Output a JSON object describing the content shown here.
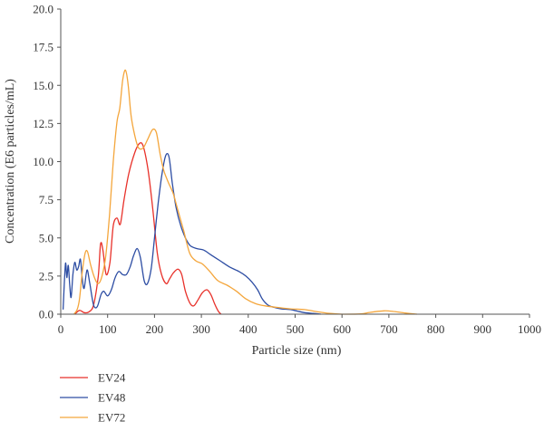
{
  "chart_data": {
    "type": "line",
    "xlabel": "Particle size (nm)",
    "ylabel": "Concentration (E6 particles/mL)",
    "xlim": [
      0,
      1000
    ],
    "ylim": [
      0,
      20
    ],
    "xticks": [
      "0",
      "100",
      "200",
      "300",
      "400",
      "500",
      "600",
      "700",
      "800",
      "900",
      "1000"
    ],
    "yticks": [
      "0.0",
      "2.5",
      "5.0",
      "7.5",
      "10.0",
      "12.5",
      "15.0",
      "17.5",
      "20.0"
    ],
    "grid": false,
    "legend_position": "bottom-left",
    "series": [
      {
        "name": "EV24",
        "color": "#e8312a",
        "points": [
          [
            30,
            0
          ],
          [
            40,
            0.25
          ],
          [
            50,
            0.1
          ],
          [
            60,
            0.15
          ],
          [
            70,
            0.6
          ],
          [
            80,
            2.5
          ],
          [
            85,
            4.6
          ],
          [
            90,
            4.2
          ],
          [
            97,
            2.6
          ],
          [
            105,
            3.4
          ],
          [
            112,
            5.8
          ],
          [
            120,
            6.3
          ],
          [
            127,
            5.9
          ],
          [
            135,
            7.5
          ],
          [
            145,
            9.2
          ],
          [
            158,
            10.6
          ],
          [
            168,
            11.2
          ],
          [
            176,
            11.0
          ],
          [
            186,
            9.5
          ],
          [
            196,
            7.0
          ],
          [
            206,
            4.0
          ],
          [
            215,
            2.6
          ],
          [
            225,
            2.0
          ],
          [
            232,
            2.3
          ],
          [
            240,
            2.7
          ],
          [
            250,
            2.95
          ],
          [
            258,
            2.6
          ],
          [
            266,
            1.5
          ],
          [
            276,
            0.7
          ],
          [
            284,
            0.55
          ],
          [
            292,
            0.9
          ],
          [
            302,
            1.4
          ],
          [
            312,
            1.6
          ],
          [
            320,
            1.3
          ],
          [
            328,
            0.7
          ],
          [
            336,
            0.2
          ],
          [
            342,
            0.0
          ]
        ]
      },
      {
        "name": "EV48",
        "color": "#2d4da3",
        "points": [
          [
            5,
            0.3
          ],
          [
            10,
            3.3
          ],
          [
            13,
            2.4
          ],
          [
            16,
            3.2
          ],
          [
            19,
            2.0
          ],
          [
            22,
            1.1
          ],
          [
            26,
            2.6
          ],
          [
            30,
            3.4
          ],
          [
            34,
            2.9
          ],
          [
            38,
            3.1
          ],
          [
            42,
            3.6
          ],
          [
            46,
            2.3
          ],
          [
            50,
            1.7
          ],
          [
            56,
            2.9
          ],
          [
            62,
            2.0
          ],
          [
            70,
            0.6
          ],
          [
            78,
            0.5
          ],
          [
            86,
            1.3
          ],
          [
            92,
            1.5
          ],
          [
            100,
            1.2
          ],
          [
            108,
            1.6
          ],
          [
            116,
            2.4
          ],
          [
            124,
            2.8
          ],
          [
            132,
            2.6
          ],
          [
            140,
            2.6
          ],
          [
            148,
            3.1
          ],
          [
            155,
            3.8
          ],
          [
            163,
            4.3
          ],
          [
            170,
            3.7
          ],
          [
            178,
            2.2
          ],
          [
            185,
            2.0
          ],
          [
            193,
            3.0
          ],
          [
            200,
            5.0
          ],
          [
            208,
            7.3
          ],
          [
            216,
            9.2
          ],
          [
            224,
            10.4
          ],
          [
            231,
            10.3
          ],
          [
            238,
            8.6
          ],
          [
            246,
            7.0
          ],
          [
            256,
            5.8
          ],
          [
            266,
            5.0
          ],
          [
            276,
            4.5
          ],
          [
            290,
            4.3
          ],
          [
            305,
            4.2
          ],
          [
            320,
            3.9
          ],
          [
            340,
            3.5
          ],
          [
            360,
            3.1
          ],
          [
            380,
            2.8
          ],
          [
            395,
            2.5
          ],
          [
            408,
            2.1
          ],
          [
            420,
            1.6
          ],
          [
            430,
            1.0
          ],
          [
            442,
            0.6
          ],
          [
            455,
            0.45
          ],
          [
            470,
            0.35
          ],
          [
            490,
            0.3
          ],
          [
            505,
            0.2
          ],
          [
            520,
            0.1
          ],
          [
            540,
            0.05
          ],
          [
            555,
            0.0
          ]
        ]
      },
      {
        "name": "EV72",
        "color": "#f4a63c",
        "points": [
          [
            28,
            0
          ],
          [
            35,
            0.3
          ],
          [
            40,
            1.0
          ],
          [
            46,
            2.8
          ],
          [
            52,
            4.0
          ],
          [
            57,
            4.1
          ],
          [
            64,
            3.2
          ],
          [
            72,
            2.4
          ],
          [
            80,
            2.0
          ],
          [
            88,
            2.5
          ],
          [
            96,
            3.8
          ],
          [
            104,
            6.5
          ],
          [
            112,
            10.0
          ],
          [
            120,
            12.6
          ],
          [
            126,
            13.5
          ],
          [
            132,
            15.3
          ],
          [
            138,
            16.0
          ],
          [
            144,
            15.0
          ],
          [
            150,
            13.0
          ],
          [
            158,
            11.7
          ],
          [
            166,
            10.9
          ],
          [
            176,
            10.9
          ],
          [
            186,
            11.5
          ],
          [
            196,
            12.1
          ],
          [
            204,
            11.9
          ],
          [
            212,
            10.5
          ],
          [
            220,
            9.4
          ],
          [
            230,
            8.6
          ],
          [
            240,
            7.9
          ],
          [
            250,
            6.8
          ],
          [
            262,
            5.5
          ],
          [
            275,
            4.0
          ],
          [
            288,
            3.5
          ],
          [
            302,
            3.3
          ],
          [
            318,
            2.8
          ],
          [
            335,
            2.2
          ],
          [
            355,
            1.9
          ],
          [
            375,
            1.5
          ],
          [
            395,
            1.0
          ],
          [
            415,
            0.7
          ],
          [
            435,
            0.55
          ],
          [
            460,
            0.45
          ],
          [
            490,
            0.35
          ],
          [
            520,
            0.3
          ],
          [
            550,
            0.15
          ],
          [
            575,
            0.05
          ],
          [
            600,
            0.0
          ],
          [
            640,
            0.02
          ],
          [
            660,
            0.12
          ],
          [
            690,
            0.22
          ],
          [
            710,
            0.18
          ],
          [
            735,
            0.08
          ],
          [
            760,
            0.0
          ]
        ]
      }
    ]
  }
}
